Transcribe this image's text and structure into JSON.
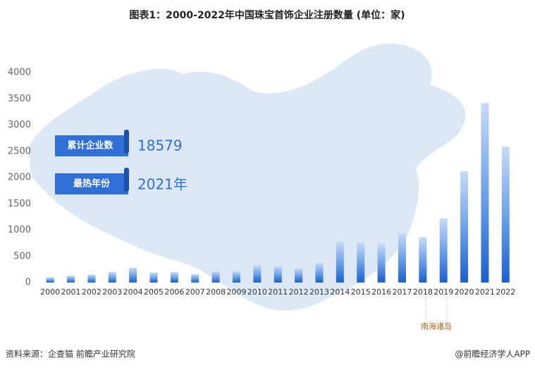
{
  "chart_data": {
    "type": "bar",
    "title": "图表1：2000-2022年中国珠宝首饰企业注册数量 (单位：家)",
    "categories": [
      "2000",
      "2001",
      "2002",
      "2003",
      "2004",
      "2005",
      "2006",
      "2007",
      "2008",
      "2009",
      "2010",
      "2011",
      "2012",
      "2013",
      "2014",
      "2015",
      "2016",
      "2017",
      "2018",
      "2019",
      "2020",
      "2021",
      "2022"
    ],
    "values": [
      100,
      130,
      150,
      200,
      280,
      190,
      200,
      160,
      215,
      215,
      335,
      310,
      270,
      375,
      780,
      765,
      740,
      940,
      860,
      1220,
      2120,
      3420,
      2590
    ],
    "color": "#1a5fd0",
    "ylim": [
      0,
      4000
    ],
    "yticks": [
      0,
      500,
      1000,
      1500,
      2000,
      2500,
      3000,
      3500,
      4000
    ],
    "annotations": [
      {
        "label": "累计企业数",
        "value": 18579
      },
      {
        "label": "最热年份",
        "value": "2021年"
      }
    ],
    "map_label": "南海诸岛",
    "source": "资料来源：企查猫 前瞻产业研究院",
    "credit": "@前瞻经济学人APP"
  }
}
